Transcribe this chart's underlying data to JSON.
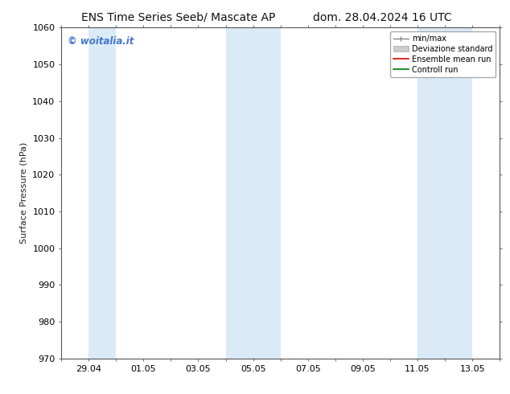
{
  "title_left": "ENS Time Series Seeb/ Mascate AP",
  "title_right": "dom. 28.04.2024 16 UTC",
  "ylabel": "Surface Pressure (hPa)",
  "ylim": [
    970,
    1060
  ],
  "yticks": [
    970,
    980,
    990,
    1000,
    1010,
    1020,
    1030,
    1040,
    1050,
    1060
  ],
  "x_tick_labels": [
    "29.04",
    "01.05",
    "03.05",
    "05.05",
    "07.05",
    "09.05",
    "11.05",
    "13.05"
  ],
  "shaded_bands": [
    {
      "x0": "2024-04-29",
      "x1": "2024-04-30"
    },
    {
      "x0": "2024-05-04",
      "x1": "2024-05-06"
    },
    {
      "x0": "2024-05-11",
      "x1": "2024-05-13"
    }
  ],
  "band_color": "#daeaf7",
  "background_color": "#ffffff",
  "watermark": "© woitalia.it",
  "watermark_color": "#4477cc",
  "legend_entries": [
    "min/max",
    "Deviazione standard",
    "Ensemble mean run",
    "Controll run"
  ],
  "legend_colors_line": [
    "#888888",
    "#bbbbbb",
    "#dd0000",
    "#007700"
  ],
  "title_fontsize": 10,
  "axis_label_fontsize": 8,
  "tick_fontsize": 8
}
